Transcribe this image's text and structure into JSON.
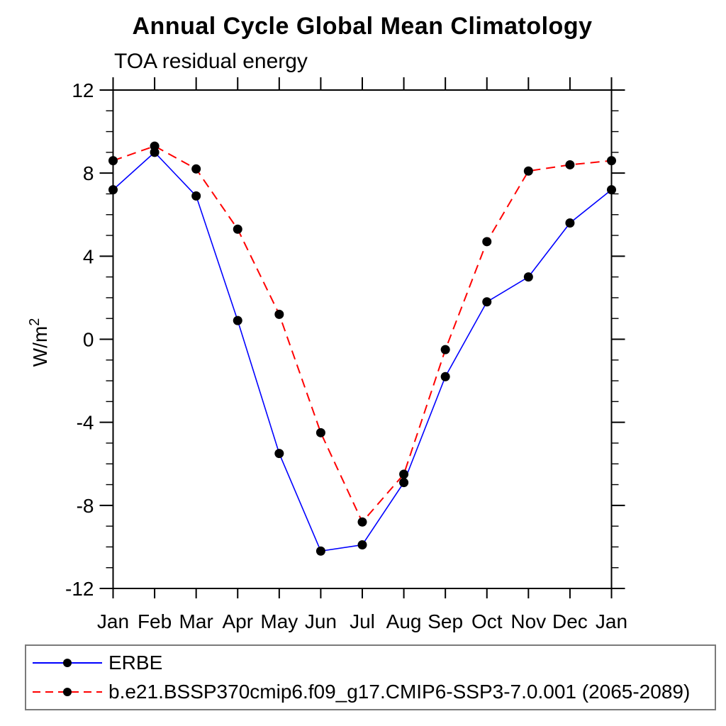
{
  "chart_data": {
    "type": "line",
    "title": "Annual Cycle Global Mean Climatology",
    "subtitle": "TOA residual energy",
    "ylabel": "W/m",
    "ylabel_exponent": "2",
    "xlabel": "",
    "categories": [
      "Jan",
      "Feb",
      "Mar",
      "Apr",
      "May",
      "Jun",
      "Jul",
      "Aug",
      "Sep",
      "Oct",
      "Nov",
      "Dec",
      "Jan"
    ],
    "ylim": [
      -12,
      12
    ],
    "yticks_major": [
      12,
      8,
      4,
      0,
      -4,
      -8,
      -12
    ],
    "ytick_minor_step": 1,
    "grid": "off",
    "legend_position": "bottom-left-box",
    "marker": "filled-circle",
    "marker_color": "#000000",
    "axis_color": "#000000",
    "series": [
      {
        "name": "ERBE",
        "line_style": "solid",
        "color": "#0000ff",
        "values": [
          7.2,
          9.0,
          6.9,
          0.9,
          -5.5,
          -10.2,
          -9.9,
          -6.9,
          -1.8,
          1.8,
          3.0,
          5.6,
          7.2
        ]
      },
      {
        "name": "b.e21.BSSP370cmip6.f09_g17.CMIP6-SSP3-7.0.001 (2065-2089)",
        "line_style": "dashed",
        "color": "#ff0000",
        "values": [
          8.6,
          9.3,
          8.2,
          5.3,
          1.2,
          -4.5,
          -8.8,
          -6.5,
          -0.5,
          4.7,
          8.1,
          8.4,
          8.6
        ]
      }
    ]
  }
}
